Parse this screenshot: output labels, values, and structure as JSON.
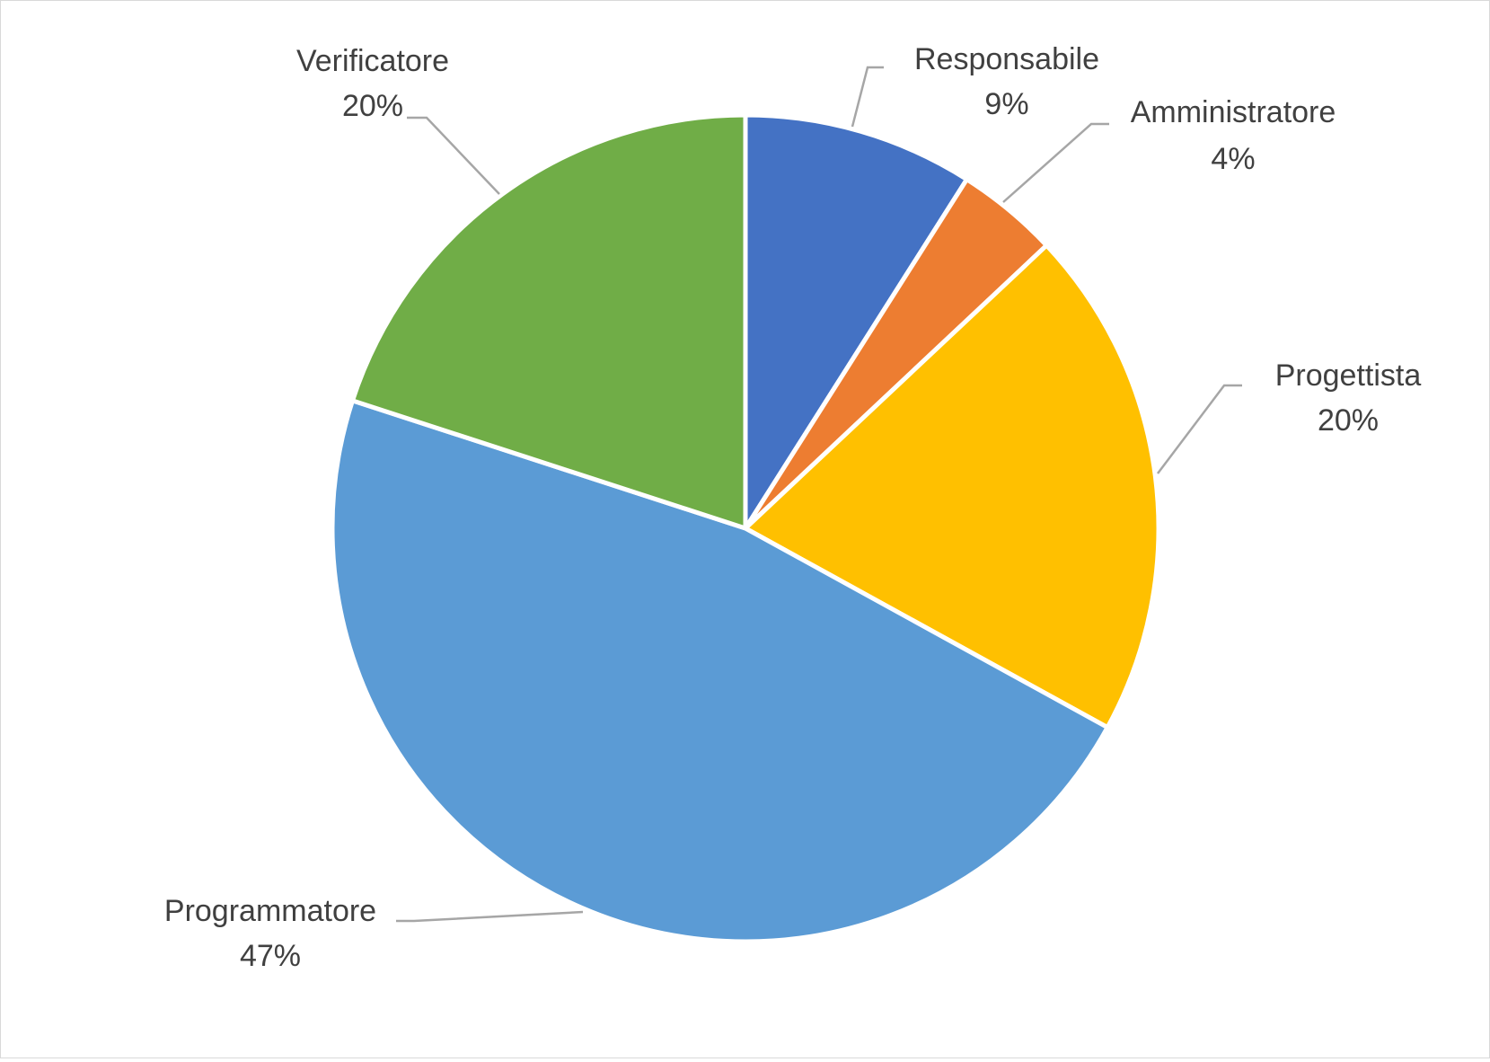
{
  "chart_data": {
    "type": "pie",
    "title": "",
    "start_angle_deg": 0,
    "direction": "clockwise",
    "slices": [
      {
        "label": "Responsabile",
        "value": 9,
        "value_label": "9%",
        "color": "#4472C4"
      },
      {
        "label": "Amministratore",
        "value": 4,
        "value_label": "4%",
        "color": "#ED7D31"
      },
      {
        "label": "Progettista",
        "value": 20,
        "value_label": "20%",
        "color": "#FFC000"
      },
      {
        "label": "Programmatore",
        "value": 47,
        "value_label": "47%",
        "color": "#5B9BD5"
      },
      {
        "label": "Verificatore",
        "value": 20,
        "value_label": "20%",
        "color": "#70AD47"
      }
    ],
    "legend": "none",
    "data_labels": "outside-with-leader-lines"
  }
}
